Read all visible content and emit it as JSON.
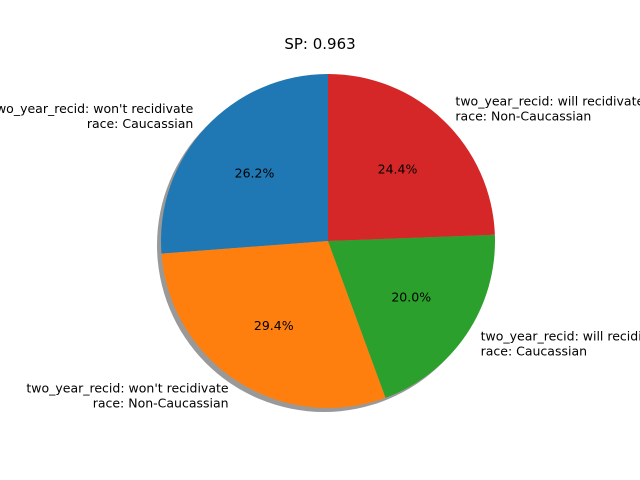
{
  "chart_data": {
    "type": "pie",
    "title": "SP: 0.963",
    "shadow": true,
    "start_angle_deg": 90,
    "direction": "counterclockwise",
    "slices": [
      {
        "label_lines": [
          "two_year_recid: won't recidivate",
          "race: Caucassian"
        ],
        "percent_label": "26.2%",
        "value": 26.2,
        "color": "#1f77b4"
      },
      {
        "label_lines": [
          "two_year_recid: won't recidivate",
          "race: Non-Caucassian"
        ],
        "percent_label": "29.4%",
        "value": 29.4,
        "color": "#ff7f0e"
      },
      {
        "label_lines": [
          "two_year_recid: will recidivate",
          "race: Caucassian"
        ],
        "percent_label": "20.0%",
        "value": 20.0,
        "color": "#2ca02c"
      },
      {
        "label_lines": [
          "two_year_recid: will recidivate",
          "race: Non-Caucassian"
        ],
        "percent_label": "24.4%",
        "value": 24.4,
        "color": "#d62728"
      }
    ]
  }
}
